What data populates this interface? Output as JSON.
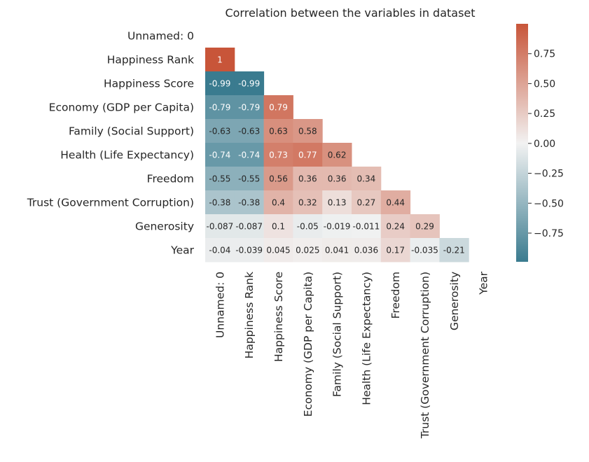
{
  "chart_data": {
    "type": "heatmap",
    "title": "Correlation between the variables in dataset",
    "variables": [
      "Unnamed: 0",
      "Happiness Rank",
      "Happiness Score",
      "Economy (GDP per Capita)",
      "Family (Social Support)",
      "Health (Life Expectancy)",
      "Freedom",
      "Trust (Government Corruption)",
      "Generosity",
      "Year"
    ],
    "mask": "upper-triangle",
    "values": [
      [],
      [
        1
      ],
      [
        -0.99,
        -0.99
      ],
      [
        -0.79,
        -0.79,
        0.79
      ],
      [
        -0.63,
        -0.63,
        0.63,
        0.58
      ],
      [
        -0.74,
        -0.74,
        0.73,
        0.77,
        0.62
      ],
      [
        -0.55,
        -0.55,
        0.56,
        0.36,
        0.36,
        0.34
      ],
      [
        -0.38,
        -0.38,
        0.4,
        0.32,
        0.13,
        0.27,
        0.44
      ],
      [
        -0.087,
        -0.087,
        0.1,
        -0.05,
        -0.019,
        -0.011,
        0.24,
        0.29
      ],
      [
        -0.04,
        -0.039,
        0.045,
        0.025,
        0.041,
        0.036,
        0.17,
        -0.035,
        -0.21
      ]
    ],
    "cell_labels": [
      [],
      [
        "1"
      ],
      [
        "-0.99",
        "-0.99"
      ],
      [
        "-0.79",
        "-0.79",
        "0.79"
      ],
      [
        "-0.63",
        "-0.63",
        "0.63",
        "0.58"
      ],
      [
        "-0.74",
        "-0.74",
        "0.73",
        "0.77",
        "0.62"
      ],
      [
        "-0.55",
        "-0.55",
        "0.56",
        "0.36",
        "0.36",
        "0.34"
      ],
      [
        "-0.38",
        "-0.38",
        "0.4",
        "0.32",
        "0.13",
        "0.27",
        "0.44"
      ],
      [
        "-0.087",
        "-0.087",
        "0.1",
        "-0.05",
        "-0.019",
        "-0.011",
        "0.24",
        "0.29"
      ],
      [
        "-0.04",
        "-0.039",
        "0.045",
        "0.025",
        "0.041",
        "0.036",
        "0.17",
        "-0.035",
        "-0.21"
      ]
    ],
    "colormap": {
      "negative": "#3a7b8f",
      "center": "#f2f2f2",
      "positive": "#c85539"
    },
    "color_range": [
      -0.99,
      1.0
    ],
    "colorbar": {
      "ticks": [
        0.75,
        0.5,
        0.25,
        0.0,
        -0.25,
        -0.5,
        -0.75
      ],
      "tick_labels": [
        "0.75",
        "0.50",
        "0.25",
        "0.00",
        "−0.25",
        "−0.50",
        "−0.75"
      ]
    },
    "grid": false,
    "xlabel": "",
    "ylabel": ""
  }
}
